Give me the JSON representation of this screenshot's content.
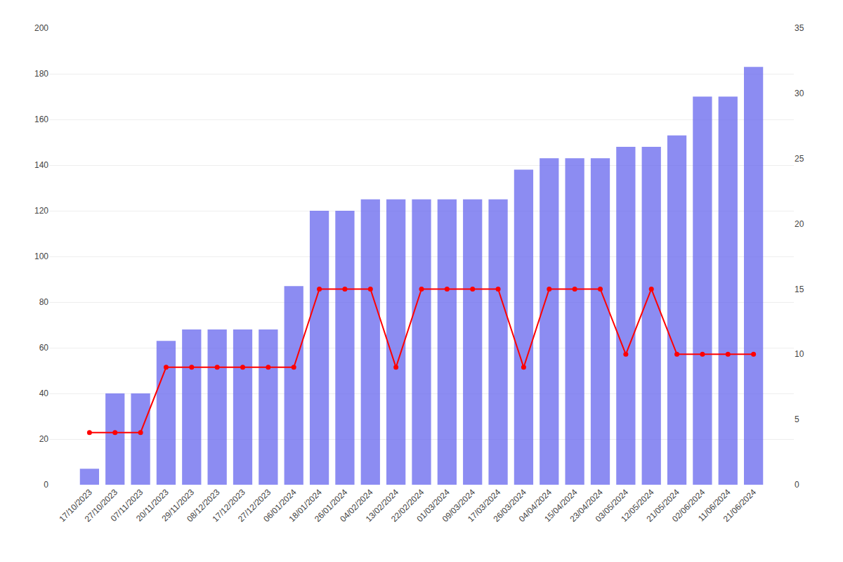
{
  "chart_data": {
    "type": "bar",
    "categories": [
      "17/10/2023",
      "27/10/2023",
      "07/11/2023",
      "20/11/2023",
      "29/11/2023",
      "08/12/2023",
      "17/12/2023",
      "27/12/2023",
      "06/01/2024",
      "18/01/2024",
      "26/01/2024",
      "04/02/2024",
      "13/02/2024",
      "22/02/2024",
      "01/03/2024",
      "09/03/2024",
      "17/03/2024",
      "26/03/2024",
      "04/04/2024",
      "15/04/2024",
      "23/04/2024",
      "03/05/2024",
      "12/05/2024",
      "21/05/2024",
      "02/06/2024",
      "11/06/2024",
      "21/06/2024"
    ],
    "series": [
      {
        "type": "bar",
        "color": "#6666EE",
        "values": [
          7,
          40,
          40,
          63,
          68,
          68,
          68,
          68,
          87,
          120,
          120,
          125,
          125,
          125,
          125,
          125,
          125,
          138,
          143,
          143,
          143,
          148,
          148,
          153,
          170,
          170,
          183
        ]
      },
      {
        "type": "line",
        "color": "#FF0000",
        "marker": "circle",
        "line_style": "solid",
        "axis": "y2",
        "values": [
          4,
          4,
          4,
          9,
          9,
          9,
          9,
          9,
          9,
          15,
          15,
          15,
          9,
          15,
          15,
          15,
          15,
          9,
          15,
          15,
          15,
          10,
          15,
          10,
          10,
          10,
          10
        ]
      }
    ],
    "ylim": [
      0,
      200
    ],
    "yticks": [
      0,
      20,
      40,
      60,
      80,
      100,
      120,
      140,
      160,
      180,
      200
    ],
    "y2lim": [
      0,
      35
    ],
    "y2ticks": [
      0,
      5,
      10,
      15,
      20,
      25,
      30,
      35
    ],
    "grid": true
  }
}
